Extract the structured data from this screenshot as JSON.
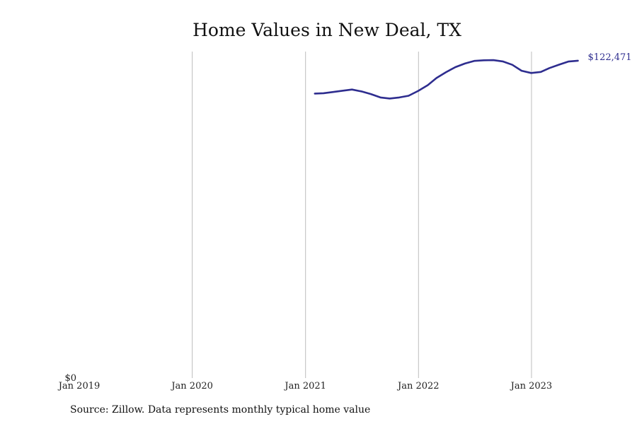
{
  "chart_data": {
    "type": "line",
    "title": "Home Values in New Deal, TX",
    "xlabel": "",
    "ylabel": "",
    "grid": "vertical",
    "x_tick_labels": [
      {
        "date": "2019-01-01",
        "label": "Jan 2019"
      },
      {
        "date": "2020-01-01",
        "label": "Jan 2020"
      },
      {
        "date": "2021-01-01",
        "label": "Jan 2021"
      },
      {
        "date": "2022-01-01",
        "label": "Jan 2022"
      },
      {
        "date": "2023-01-01",
        "label": "Jan 2023"
      }
    ],
    "y_tick_labels": [
      {
        "value": 0,
        "label": "$0"
      }
    ],
    "xlim": [
      "2019-01-01",
      "2023-12-01"
    ],
    "ylim": [
      0,
      126000
    ],
    "end_label": "$122,471",
    "series": [
      {
        "color": "#2e2d8f",
        "points": [
          {
            "x": "2021-01-31",
            "y": 109800
          },
          {
            "x": "2021-02-28",
            "y": 109950
          },
          {
            "x": "2021-03-31",
            "y": 110400
          },
          {
            "x": "2021-04-30",
            "y": 110900
          },
          {
            "x": "2021-05-31",
            "y": 111350
          },
          {
            "x": "2021-06-30",
            "y": 110650
          },
          {
            "x": "2021-07-31",
            "y": 109600
          },
          {
            "x": "2021-08-31",
            "y": 108300
          },
          {
            "x": "2021-09-30",
            "y": 107900
          },
          {
            "x": "2021-10-31",
            "y": 108300
          },
          {
            "x": "2021-11-30",
            "y": 108950
          },
          {
            "x": "2021-12-31",
            "y": 110850
          },
          {
            "x": "2022-01-31",
            "y": 113050
          },
          {
            "x": "2022-02-28",
            "y": 115800
          },
          {
            "x": "2022-03-31",
            "y": 118050
          },
          {
            "x": "2022-04-30",
            "y": 120000
          },
          {
            "x": "2022-05-31",
            "y": 121400
          },
          {
            "x": "2022-06-30",
            "y": 122400
          },
          {
            "x": "2022-07-31",
            "y": 122650
          },
          {
            "x": "2022-08-31",
            "y": 122700
          },
          {
            "x": "2022-09-30",
            "y": 122200
          },
          {
            "x": "2022-10-31",
            "y": 120900
          },
          {
            "x": "2022-11-30",
            "y": 118600
          },
          {
            "x": "2022-12-31",
            "y": 117750
          },
          {
            "x": "2023-01-31",
            "y": 118150
          },
          {
            "x": "2023-02-28",
            "y": 119650
          },
          {
            "x": "2023-03-31",
            "y": 120950
          },
          {
            "x": "2023-04-30",
            "y": 122150
          },
          {
            "x": "2023-05-31",
            "y": 122471
          }
        ]
      }
    ]
  },
  "source_note": "Source: Zillow. Data represents monthly typical home value"
}
